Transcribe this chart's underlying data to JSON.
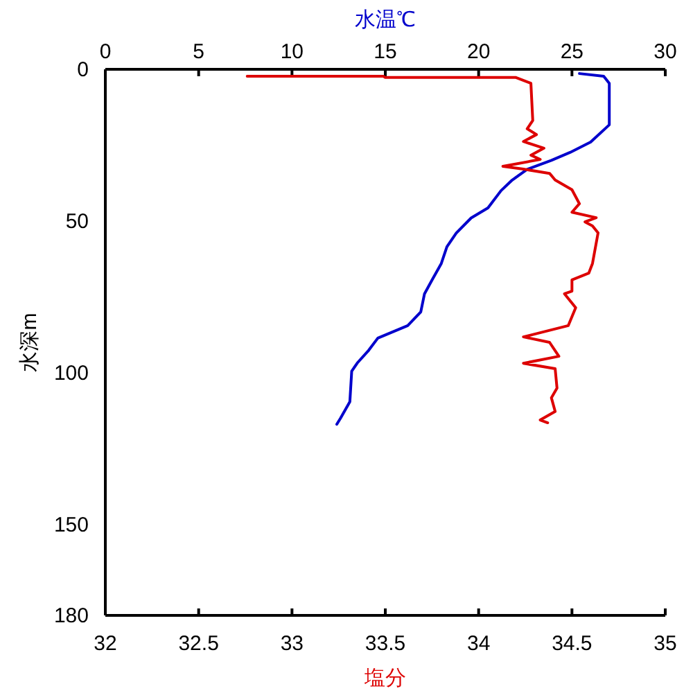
{
  "chart_data": {
    "type": "line",
    "xlabel": "塩分",
    "x2label": "水温℃",
    "ylabel": "水深m",
    "xlim": [
      32,
      35
    ],
    "xticks": [
      32,
      {
        "value": 32.5,
        "label": "32.5"
      },
      33,
      {
        "value": 33.5,
        "label": "33.5"
      },
      34,
      {
        "value": 34.5,
        "label": "34.5"
      },
      35
    ],
    "x2lim": [
      0,
      30
    ],
    "x2ticks": [
      0,
      5,
      10,
      15,
      20,
      25,
      30
    ],
    "ylim": [
      180,
      0
    ],
    "yticks": [
      0,
      50,
      100,
      150,
      180
    ],
    "grid": false,
    "marker": "none",
    "line_style": "solid",
    "series": [
      {
        "color": "#0000cc",
        "axis": "x2",
        "x": [
          25.4,
          26.7,
          27.0,
          27.0,
          26.0,
          24.9,
          23.9,
          22.6,
          21.8,
          21.2,
          20.5,
          19.6,
          18.8,
          18.3,
          18.0,
          17.5,
          17.1,
          16.9,
          16.2,
          14.6,
          14.1,
          13.5,
          13.2,
          13.1,
          12.6,
          12.4
        ],
        "values": [
          1.4,
          2.3,
          4.6,
          18.3,
          24,
          27.4,
          30,
          33,
          36.5,
          40,
          45.7,
          49,
          54,
          58.5,
          64,
          69.5,
          74,
          80,
          84.5,
          88.6,
          92.7,
          96.8,
          99.5,
          109.6,
          115,
          117
        ]
      },
      {
        "color": "#dd0000",
        "x": [
          32.76,
          33.49,
          33.5,
          34.2,
          34.28,
          34.29,
          34.26,
          34.31,
          34.24,
          34.35,
          34.28,
          34.33,
          34.13,
          34.24,
          34.38,
          34.41,
          34.5,
          34.54,
          34.5,
          34.63,
          34.57,
          34.61,
          34.64,
          34.61,
          34.59,
          34.5,
          34.5,
          34.46,
          34.52,
          34.48,
          34.24,
          34.38,
          34.43,
          34.24,
          34.41,
          34.42,
          34.39,
          34.41,
          34.33,
          34.37
        ],
        "values": [
          2.3,
          2.3,
          2.7,
          2.7,
          4.6,
          16.9,
          19.6,
          21.5,
          23.8,
          26,
          28.3,
          29.7,
          32,
          32.9,
          34.3,
          36.5,
          39.7,
          44.3,
          47.1,
          48.9,
          50.3,
          51.6,
          53.9,
          64,
          67.2,
          69.4,
          73.1,
          74,
          78.6,
          84.5,
          88.2,
          90,
          94.6,
          96.9,
          98.7,
          105.1,
          108.3,
          112.8,
          115.6,
          116.5
        ]
      }
    ]
  }
}
